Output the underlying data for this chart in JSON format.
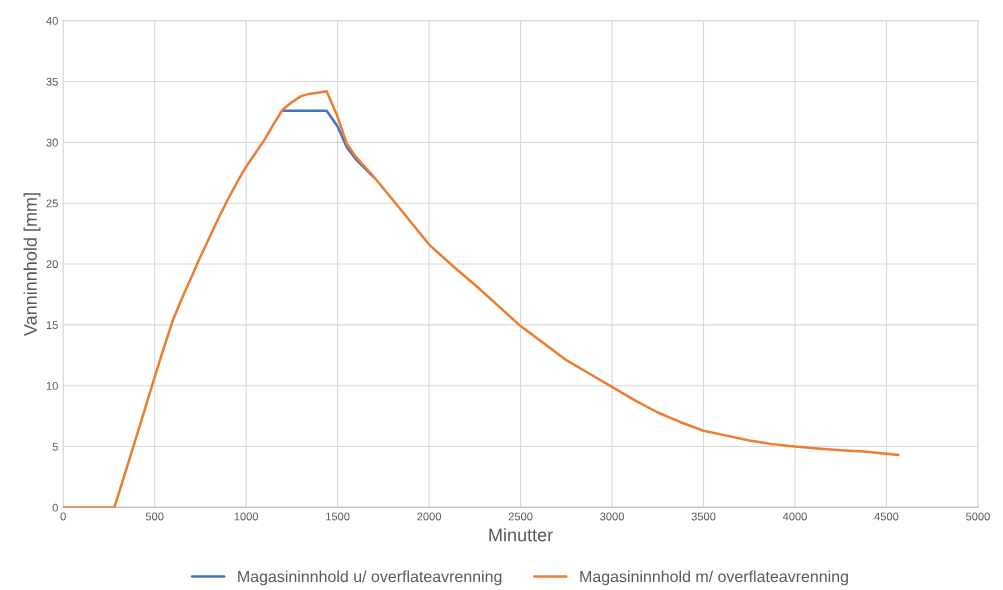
{
  "chart_data": {
    "type": "line",
    "xlabel": "Minutter",
    "ylabel": "Vanninnhold [mm]",
    "xlim": [
      0,
      5000
    ],
    "xticks": [
      0,
      500,
      1000,
      1500,
      2000,
      2500,
      3000,
      3500,
      4000,
      4500,
      5000
    ],
    "ylim": [
      0,
      40
    ],
    "yticks": [
      0,
      5,
      10,
      15,
      20,
      25,
      30,
      35,
      40
    ],
    "grid": true,
    "legend": "bottom",
    "marker": "none",
    "line_style": "solid",
    "series": [
      {
        "name": "Magasininnhold u/ overflateavrenning",
        "color": "#4472c4",
        "x": [
          1200,
          1440,
          1500,
          1550,
          1600,
          1700
        ],
        "values": [
          32.6,
          32.6,
          31.3,
          29.6,
          28.6,
          27.1
        ]
      },
      {
        "name": "Magasininnhold m/ overflateavrenning",
        "color": "#ed7d31",
        "x": [
          0,
          280,
          400,
          500,
          550,
          600,
          650,
          700,
          750,
          800,
          850,
          900,
          950,
          1000,
          1050,
          1100,
          1150,
          1200,
          1250,
          1300,
          1350,
          1400,
          1440,
          1500,
          1550,
          1600,
          1685,
          1800,
          2000,
          2125,
          2250,
          2375,
          2500,
          2625,
          2750,
          2875,
          3000,
          3125,
          3250,
          3375,
          3500,
          3625,
          3750,
          3875,
          4000,
          4125,
          4250,
          4375,
          4500,
          4565
        ],
        "values": [
          0,
          0,
          5.8,
          10.7,
          13.1,
          15.4,
          17.2,
          18.9,
          20.6,
          22.2,
          23.8,
          25.3,
          26.7,
          28.0,
          29.1,
          30.2,
          31.5,
          32.7,
          33.3,
          33.8,
          34.0,
          34.1,
          34.2,
          32.1,
          29.9,
          28.8,
          27.4,
          25.3,
          21.6,
          19.9,
          18.3,
          16.6,
          14.9,
          13.5,
          12.1,
          11.0,
          9.9,
          8.8,
          7.8,
          7.0,
          6.3,
          5.9,
          5.5,
          5.2,
          5.0,
          4.85,
          4.7,
          4.6,
          4.4,
          4.3
        ]
      }
    ]
  }
}
